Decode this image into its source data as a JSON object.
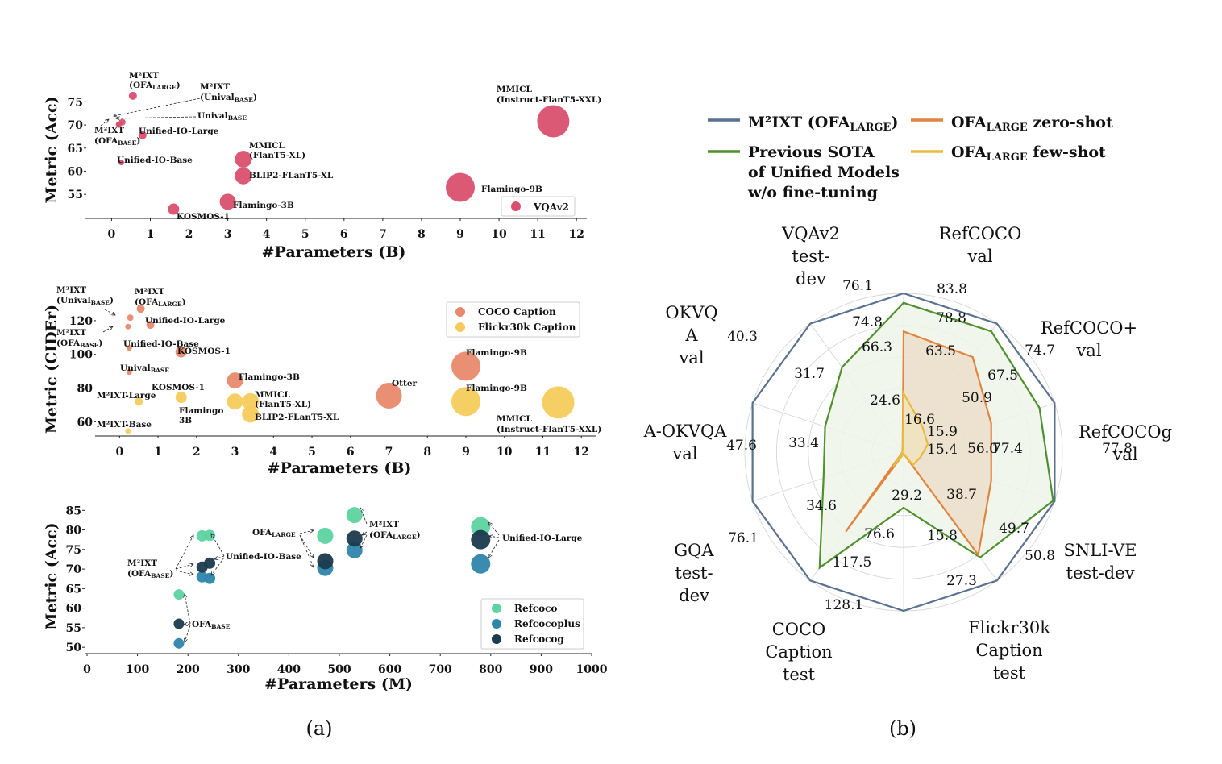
{
  "chart_data": [
    {
      "type": "scatter",
      "id": "vqa",
      "xlabel": "#Parameters (B)",
      "ylabel": "Metric (Acc)",
      "xlim": [
        -0.3,
        12.1
      ],
      "ylim": [
        50.5,
        77.5
      ],
      "xticks": [
        0,
        1,
        2,
        3,
        4,
        5,
        6,
        7,
        8,
        9,
        10,
        11,
        12
      ],
      "yticks": [
        55,
        60,
        65,
        70,
        75
      ],
      "series": [
        {
          "name": "VQAv2",
          "color": "#d9506e",
          "points": [
            {
              "x": 0.55,
              "y": 76.3,
              "s": 5,
              "label": "M²IXT (OFA_LARGE)"
            },
            {
              "x": 0.28,
              "y": 70.6,
              "s": 4,
              "label": "M²IXT (Unival_BASE)"
            },
            {
              "x": 0.2,
              "y": 70.2,
              "s": 3.5,
              "label": "Unival_BASE"
            },
            {
              "x": 0.18,
              "y": 70.1,
              "s": 3.5,
              "label": "M²IXT (OFA_BASE)"
            },
            {
              "x": 0.8,
              "y": 67.8,
              "s": 5,
              "label": "Unified-IO-Large"
            },
            {
              "x": 0.25,
              "y": 61.9,
              "s": 3.5,
              "label": "Unified-IO-Base"
            },
            {
              "x": 3.4,
              "y": 62.6,
              "s": 10.5,
              "label": "MMICL (FlanT5-XL)"
            },
            {
              "x": 3.4,
              "y": 59.0,
              "s": 10.5,
              "label": "BLIP2-FLanT5-XL"
            },
            {
              "x": 3.0,
              "y": 53.4,
              "s": 10,
              "label": "Flamingo-3B"
            },
            {
              "x": 1.6,
              "y": 51.8,
              "s": 7,
              "label": "KOSMOS-1"
            },
            {
              "x": 9.0,
              "y": 56.5,
              "s": 18,
              "label": "Flamingo-9B"
            },
            {
              "x": 11.4,
              "y": 70.8,
              "s": 20,
              "label": "MMICL (Instruct-FlanT5-XXL)"
            }
          ]
        }
      ]
    },
    {
      "type": "scatter",
      "id": "caption",
      "xlabel": "#Parameters (B)",
      "ylabel": "Metric (CIDEr)",
      "xlim": [
        -0.3,
        12.1
      ],
      "ylim": [
        53,
        130
      ],
      "xticks": [
        0,
        1,
        2,
        3,
        4,
        5,
        6,
        7,
        8,
        9,
        10,
        11,
        12
      ],
      "yticks": [
        60,
        80,
        100,
        120
      ],
      "series": [
        {
          "name": "COCO Caption",
          "color": "#e8896b",
          "points": [
            {
              "x": 0.55,
              "y": 127.0,
              "s": 5,
              "label": "M²IXT (OFA_LARGE)"
            },
            {
              "x": 0.28,
              "y": 121.8,
              "s": 4,
              "label": "M²IXT (Unival_BASE)"
            },
            {
              "x": 0.22,
              "y": 116.5,
              "s": 3.5,
              "label": "M²IXT (OFA_BASE)"
            },
            {
              "x": 0.8,
              "y": 117.5,
              "s": 5,
              "label": "Unified-IO-Large"
            },
            {
              "x": 0.25,
              "y": 103.8,
              "s": 3.5,
              "label": "Unified-IO-Base"
            },
            {
              "x": 1.6,
              "y": 101.5,
              "s": 7,
              "label": "KOSMOS-1"
            },
            {
              "x": 0.25,
              "y": 89.5,
              "s": 3.5,
              "label": "Unival_BASE"
            },
            {
              "x": 3.0,
              "y": 84.5,
              "s": 10,
              "label": "Flamingo-3B"
            },
            {
              "x": 7.0,
              "y": 75.5,
              "s": 16,
              "label": "Otter"
            },
            {
              "x": 9.0,
              "y": 93.0,
              "s": 18,
              "label": "Flamingo-9B"
            }
          ]
        },
        {
          "name": "Flickr30k Caption",
          "color": "#f5cc5c",
          "points": [
            {
              "x": 0.5,
              "y": 72.0,
              "s": 5,
              "label": "M²IXT-Large"
            },
            {
              "x": 0.22,
              "y": 54.5,
              "s": 3.5,
              "label": "M²IXT-Base"
            },
            {
              "x": 1.6,
              "y": 74.5,
              "s": 7,
              "label": "KOSMOS-1"
            },
            {
              "x": 3.0,
              "y": 72.0,
              "s": 10,
              "label": "Flamingo 3B"
            },
            {
              "x": 3.4,
              "y": 72.0,
              "s": 10.5,
              "label": "MMICL (FlanT5-XL)"
            },
            {
              "x": 3.4,
              "y": 64.5,
              "s": 10.5,
              "label": "BLIP2-FLanT5-XL"
            },
            {
              "x": 9.0,
              "y": 72.0,
              "s": 18,
              "label": "Flamingo-9B"
            },
            {
              "x": 11.4,
              "y": 71.5,
              "s": 20,
              "label": "MMICL (Instruct-FlanT5-XXL)"
            }
          ]
        }
      ]
    },
    {
      "type": "scatter",
      "id": "refcoco",
      "xlabel": "#Parameters (M)",
      "ylabel": "Metric (Acc)",
      "xlim": [
        0,
        1000
      ],
      "ylim": [
        49,
        86.5
      ],
      "xticks": [
        0,
        100,
        200,
        300,
        400,
        500,
        600,
        700,
        800,
        900,
        1000
      ],
      "yticks": [
        50,
        55,
        60,
        65,
        70,
        75,
        80,
        85
      ],
      "series": [
        {
          "name": "Refcoco",
          "color": "#5dd3a0",
          "points": [
            {
              "x": 182,
              "y": 63.5,
              "s": 6.5
            },
            {
              "x": 228,
              "y": 78.5,
              "s": 7
            },
            {
              "x": 243,
              "y": 78.6,
              "s": 7
            },
            {
              "x": 472,
              "y": 78.5,
              "s": 10
            },
            {
              "x": 530,
              "y": 83.8,
              "s": 10
            },
            {
              "x": 780,
              "y": 80.8,
              "s": 12
            }
          ]
        },
        {
          "name": "Refcocoplus",
          "color": "#2e86ab",
          "points": [
            {
              "x": 182,
              "y": 51.0,
              "s": 6.5
            },
            {
              "x": 228,
              "y": 68.0,
              "s": 7
            },
            {
              "x": 243,
              "y": 67.6,
              "s": 7
            },
            {
              "x": 472,
              "y": 70.3,
              "s": 10
            },
            {
              "x": 530,
              "y": 74.8,
              "s": 10
            },
            {
              "x": 780,
              "y": 71.3,
              "s": 12
            }
          ]
        },
        {
          "name": "Refcocog",
          "color": "#1a3a4d",
          "points": [
            {
              "x": 182,
              "y": 56.0,
              "s": 6.5
            },
            {
              "x": 228,
              "y": 70.5,
              "s": 7
            },
            {
              "x": 243,
              "y": 71.5,
              "s": 7
            },
            {
              "x": 472,
              "y": 72.0,
              "s": 10
            },
            {
              "x": 530,
              "y": 77.8,
              "s": 10
            },
            {
              "x": 780,
              "y": 77.5,
              "s": 12
            }
          ]
        }
      ]
    },
    {
      "type": "radar",
      "id": "radar",
      "axes": [
        {
          "label": [
            "VQAv2",
            "test-",
            "dev"
          ],
          "max": 76.1,
          "values": [
            74.8,
            66.3,
            24.6
          ]
        },
        {
          "label": [
            "RefCOCO",
            "val"
          ],
          "max": 83.8,
          "values": [
            78.8,
            63.5,
            16.6
          ]
        },
        {
          "label": [
            "RefCOCO+",
            "val"
          ],
          "max": 74.7,
          "values": [
            67.5,
            50.9,
            15.9
          ]
        },
        {
          "label": [
            "RefCOCOg",
            "val"
          ],
          "max": 77.8,
          "values": [
            77.4,
            56.0,
            15.4
          ]
        },
        {
          "label": [
            "SNLI-VE",
            "test-dev"
          ],
          "max": 50.8,
          "values": [
            49.7,
            38.7,
            null
          ]
        },
        {
          "label": [
            "Flickr30k",
            "Caption",
            "test"
          ],
          "max": 27.3,
          "values": [
            15.8,
            null,
            null
          ]
        },
        {
          "label": [
            "COCO",
            "Caption",
            "test"
          ],
          "max": 128.1,
          "values": [
            117.5,
            76.6,
            29.2
          ]
        },
        {
          "label": [
            "GQA",
            "test-",
            "dev"
          ],
          "max": 76.1,
          "values": [
            34.6,
            null,
            null
          ]
        },
        {
          "label": [
            "A-OKVQA",
            "val"
          ],
          "max": 47.6,
          "values": [
            33.4,
            null,
            null
          ]
        },
        {
          "label": [
            "OKVQ",
            "A",
            "val"
          ],
          "max": 40.3,
          "values": [
            31.7,
            null,
            null
          ]
        }
      ],
      "series": [
        {
          "name": "M²IXT (OFA_LARGE)",
          "color": "#5b7190",
          "r": [
            1,
            1,
            1,
            1,
            1,
            1,
            1,
            1,
            1,
            1
          ]
        },
        {
          "name": "Previous SOTA of Unified Models w/o fine-tuning",
          "color": "#4e8f2e",
          "r": [
            0.94,
            0.94,
            0.9,
            0.99,
            0.82,
            0.35,
            0.9,
            0.53,
            0.52,
            0.66
          ]
        },
        {
          "name": "OFA_LARGE zero-shot",
          "color": "#e2843f",
          "r": [
            0.76,
            0.74,
            0.58,
            0.58,
            0.8,
            0.01,
            0.62,
            0.01,
            0.01,
            0.01
          ]
        },
        {
          "name": "OFA_LARGE few-shot",
          "color": "#e8bb3c",
          "r": [
            0.37,
            0.2,
            0.16,
            0.11,
            0.1,
            0.01,
            0.11,
            0.01,
            0.01,
            0.01
          ]
        }
      ]
    }
  ],
  "legend_refcoco": [
    "Refcoco",
    "Refcocoplus",
    "Refcocog"
  ],
  "legend_vqa": "VQAv2",
  "legend_caption": [
    "COCO Caption",
    "Flickr30k Caption"
  ],
  "radar_legend": {
    "m2ixt": "M²IXT (OFA",
    "m2ixt_sub": "LARGE",
    "m2ixt_end": ")",
    "sota_1": "Previous SOTA",
    "sota_2": "of Unified Models",
    "sota_3": "w/o fine-tuning",
    "zero": "OFA",
    "zero_sub": "LARGE",
    "zero_end": " zero-shot",
    "few": "OFA",
    "few_sub": "LARGE",
    "few_end": " few-shot"
  },
  "captions": {
    "a": "(a)",
    "b": "(b)"
  },
  "annotations_vqa": {
    "m2ixt_large_1": "M²IXT",
    "m2ixt_large_2": "(OFA",
    "m2ixt_large_sub": "LARGE",
    "m2ixt_large_end": ")",
    "m2ixt_unival_1": "M²IXT",
    "m2ixt_unival_2": "(Unival",
    "m2ixt_unival_sub": "BASE",
    "m2ixt_unival_end": ")",
    "unival": "Unival",
    "unival_sub": "BASE",
    "m2ixt_base_1": "M²IXT",
    "m2ixt_base_2": "(OFA",
    "m2ixt_base_sub": "BASE",
    "m2ixt_base_end": ")",
    "uio_large": "Unified-IO-Large",
    "uio_base": "Unified-IO-Base",
    "mmicl_xl_1": "MMICL",
    "mmicl_xl_2": "(FlanT5-XL)",
    "blip2": "BLIP2-FLanT5-XL",
    "flamingo3": "Flamingo-3B",
    "kosmos": "KOSMOS-1",
    "flamingo9": "Flamingo-9B",
    "mmicl_xxl_1": "MMICL",
    "mmicl_xxl_2": "(Instruct-FlanT5-XXL)"
  },
  "annotations_cap": {
    "m2ixt_unival_1": "M²IXT",
    "m2ixt_unival_2": "(Unival",
    "m2ixt_unival_sub": "BASE",
    "m2ixt_unival_end": ")",
    "m2ixt_large_1": "M²IXT",
    "m2ixt_large_2": "(OFA",
    "m2ixt_large_sub": "LARGE",
    "m2ixt_large_end": ")",
    "m2ixt_base_1": "M²IXT",
    "m2ixt_base_2": "(OFA",
    "m2ixt_base_sub": "BASE",
    "m2ixt_base_end": ")",
    "uio_large": "Unified-IO-Large",
    "uio_base": "Unified-IO-Base",
    "kosmos_coco": "KOSMOS-1",
    "unival": "Unival",
    "unival_sub": "BASE",
    "flamingo3": "Flamingo-3B",
    "otter": "Otter",
    "flamingo9_coco": "Flamingo-9B",
    "m2ixt_l": "M²IXT-Large",
    "kosmos_flickr": "KOSMOS-1",
    "mmicl_xl_1": "MMICL",
    "mmicl_xl_2": "(FlanT5-XL)",
    "blip2": "BLIP2-FLanT5-XL",
    "flamingo3_1": "Flamingo",
    "flamingo3_2": "3B",
    "flamingo9_flickr": "Flamingo-9B",
    "m2ixt_b": "M²IXT-Base",
    "mmicl_xxl_1": "MMICL",
    "mmicl_xxl_2": "(Instruct-FlanT5-XXL)"
  },
  "annotations_ref": {
    "m2ixt_base_1": "M²IXT",
    "m2ixt_base_2": "(OFA",
    "m2ixt_base_sub": "BASE",
    "m2ixt_base_end": ")",
    "uio_base": "Unified-IO-Base",
    "ofa_large": "OFA",
    "ofa_large_sub": "LARGE",
    "m2ixt_large_1": "M²IXT",
    "m2ixt_large_2": "(OFA",
    "m2ixt_large_sub": "LARGE",
    "m2ixt_large_end": ")",
    "uio_large": "Unified-IO-Large",
    "ofa_base": "OFA",
    "ofa_base_sub": "BASE"
  }
}
